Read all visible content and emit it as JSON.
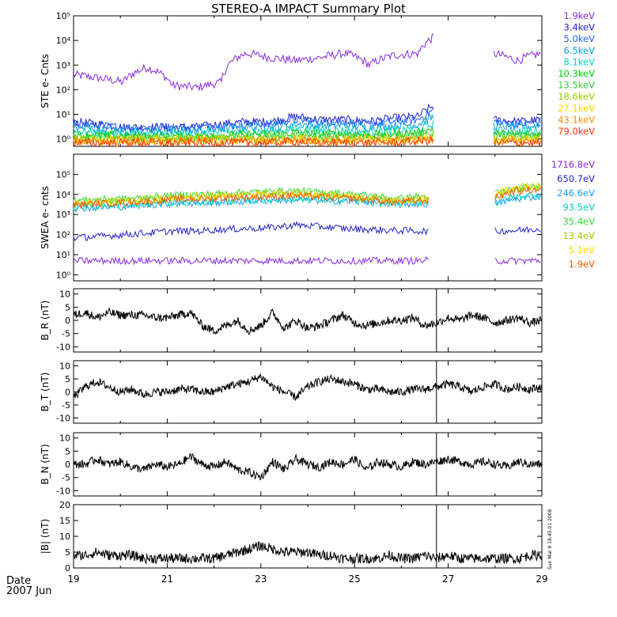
{
  "title": "STEREO-A IMPACT Summary Plot",
  "date_label": "Date",
  "date_value": "2007 Jun",
  "side_stamp": "Sun Mar  9 18:45:01 2008",
  "chart_data": [
    {
      "id": "ste",
      "type": "line",
      "ylabel": "STE e- Cnts",
      "yscale": "log",
      "ylim": [
        0.5,
        100000
      ],
      "yticks": [
        "10⁰",
        "10¹",
        "10²",
        "10³",
        "10⁴",
        "10⁵"
      ],
      "gaps": [
        [
          26.7,
          27.95
        ]
      ],
      "series": [
        {
          "name": "1.9keV",
          "color": "#8a2be2",
          "values": [
            400,
            300,
            200,
            800,
            150,
            120,
            200,
            3000,
            2000,
            1500,
            2000,
            3000,
            1000,
            2500,
            3000,
            20000,
            8000,
            3000,
            1500,
            3000
          ]
        },
        {
          "name": "3.4keV",
          "color": "#2222cc",
          "values": [
            5,
            4,
            3,
            3,
            3,
            3,
            4,
            5,
            5,
            8,
            6,
            6,
            5,
            7,
            8,
            30,
            10,
            6,
            5,
            6
          ]
        },
        {
          "name": "5.0keV",
          "color": "#1e5fff",
          "values": [
            4,
            3.5,
            3,
            3,
            3,
            3,
            3.5,
            4,
            4,
            6,
            5,
            5,
            4,
            5,
            6,
            20,
            8,
            5,
            4,
            5
          ]
        },
        {
          "name": "6.5keV",
          "color": "#00a0e0",
          "values": [
            3,
            2.5,
            2,
            2,
            2,
            2,
            2.5,
            3,
            3,
            4,
            3.5,
            3.5,
            3,
            3.5,
            4,
            10,
            5,
            3.5,
            3,
            3.5
          ]
        },
        {
          "name": "8.1keV",
          "color": "#00d0c0",
          "values": [
            2,
            1.8,
            1.6,
            1.6,
            1.6,
            1.6,
            1.8,
            2,
            2,
            2.5,
            2.2,
            2.2,
            2,
            2.2,
            2.5,
            5,
            3,
            2.2,
            2,
            2.2
          ]
        },
        {
          "name": "10.3keV",
          "color": "#00cc00",
          "values": [
            1.5,
            1.4,
            1.3,
            1.3,
            1.3,
            1.3,
            1.4,
            1.5,
            1.5,
            1.8,
            1.6,
            1.6,
            1.5,
            1.6,
            1.8,
            3,
            2,
            1.6,
            1.5,
            1.6
          ]
        },
        {
          "name": "13.5keV",
          "color": "#33cc33",
          "values": [
            1.2,
            1.1,
            1.1,
            1.1,
            1.1,
            1.1,
            1.1,
            1.2,
            1.2,
            1.4,
            1.3,
            1.3,
            1.2,
            1.3,
            1.4,
            2,
            1.5,
            1.3,
            1.2,
            1.3
          ]
        },
        {
          "name": "18.6keV",
          "color": "#99cc00",
          "values": [
            1,
            1,
            1,
            1,
            1,
            1,
            1,
            1,
            1,
            1.1,
            1,
            1,
            1,
            1,
            1.1,
            1.5,
            1.2,
            1,
            1,
            1
          ]
        },
        {
          "name": "27.1keV",
          "color": "#ffd700",
          "values": [
            0.9,
            0.9,
            0.9,
            0.9,
            0.9,
            0.9,
            0.9,
            0.9,
            0.9,
            1,
            0.9,
            0.9,
            0.9,
            0.9,
            1,
            1.2,
            1,
            0.9,
            0.9,
            0.9
          ]
        },
        {
          "name": "43.1keV",
          "color": "#ff8c00",
          "values": [
            0.8,
            0.8,
            0.8,
            0.8,
            0.8,
            0.8,
            0.8,
            0.8,
            0.8,
            0.9,
            0.8,
            0.8,
            0.8,
            0.8,
            0.9,
            1,
            0.9,
            0.8,
            0.8,
            0.8
          ]
        },
        {
          "name": "79.0keV",
          "color": "#ff3300",
          "values": [
            0.7,
            0.7,
            0.7,
            0.7,
            0.7,
            0.7,
            0.7,
            0.7,
            0.7,
            0.8,
            0.7,
            0.7,
            0.7,
            0.7,
            0.8,
            0.9,
            0.8,
            0.7,
            0.7,
            0.7
          ]
        }
      ]
    },
    {
      "id": "swea",
      "type": "line",
      "ylabel": "SWEA e- cnts",
      "yscale": "log",
      "ylim": [
        0.5,
        1000000
      ],
      "yticks": [
        "10⁰",
        "10¹",
        "10²",
        "10³",
        "10⁴",
        "10⁵"
      ],
      "gaps": [
        [
          26.6,
          28.0
        ]
      ],
      "series": [
        {
          "name": "1716.8eV",
          "color": "#8a2be2",
          "values": [
            5,
            5,
            5,
            5,
            5,
            5,
            5,
            5,
            5,
            5,
            5,
            5,
            5,
            5,
            5,
            5,
            5,
            5,
            5,
            5
          ]
        },
        {
          "name": "650.7eV",
          "color": "#2222cc",
          "values": [
            70,
            80,
            100,
            120,
            150,
            150,
            180,
            200,
            220,
            300,
            250,
            200,
            180,
            160,
            150,
            140,
            150,
            150,
            160,
            200
          ]
        },
        {
          "name": "246.6eV",
          "color": "#1e9fff",
          "values": [
            2000,
            2200,
            2500,
            3000,
            3500,
            3500,
            4000,
            4500,
            5000,
            5500,
            5000,
            4500,
            4000,
            3000,
            3500,
            3000,
            3000,
            3000,
            6000,
            8000
          ]
        },
        {
          "name": "93.5eV",
          "color": "#00d0c0",
          "values": [
            2500,
            2800,
            3000,
            3500,
            4000,
            4200,
            4500,
            5000,
            5500,
            6000,
            5500,
            5000,
            4500,
            3500,
            4000,
            3500,
            3500,
            3500,
            8000,
            10000
          ]
        },
        {
          "name": "35.4eV",
          "color": "#33dd33",
          "values": [
            5000,
            5500,
            6000,
            7000,
            9000,
            10000,
            11000,
            13000,
            14000,
            15000,
            13000,
            11000,
            9000,
            6000,
            8000,
            7000,
            9000,
            10000,
            20000,
            25000
          ]
        },
        {
          "name": "13.4eV",
          "color": "#99cc00",
          "values": [
            4000,
            4500,
            5000,
            6000,
            7000,
            8000,
            9000,
            10000,
            11000,
            12000,
            10000,
            9000,
            7000,
            5000,
            6000,
            5500,
            7000,
            8000,
            18000,
            22000
          ]
        },
        {
          "name": "5.1eV",
          "color": "#ffd700",
          "values": [
            3500,
            4000,
            4500,
            5000,
            6000,
            7000,
            8000,
            9000,
            10000,
            10000,
            9000,
            8000,
            6000,
            4500,
            5500,
            5000,
            6000,
            7000,
            25000,
            30000
          ]
        },
        {
          "name": "1.9eV",
          "color": "#ff5500",
          "values": [
            3000,
            3500,
            4000,
            4500,
            5500,
            6000,
            6500,
            7000,
            8000,
            8500,
            7500,
            6500,
            5500,
            4000,
            5000,
            4500,
            5000,
            5500,
            15000,
            18000
          ]
        }
      ]
    },
    {
      "id": "br",
      "type": "line",
      "ylabel": "B_R (nT)",
      "ylim": [
        -12,
        12
      ],
      "yticks": [
        "-10",
        "-5",
        "0",
        "5",
        "10"
      ],
      "series": [
        {
          "name": "",
          "color": "#000000",
          "values": [
            2,
            3,
            1,
            3,
            2,
            2,
            2,
            1,
            1,
            2,
            3,
            -2,
            -4,
            -2,
            0,
            -4,
            -2,
            3,
            -3,
            0,
            -3,
            -2,
            0,
            2,
            -1,
            -2,
            -1,
            0,
            0,
            1,
            -2,
            -1,
            1,
            0,
            2,
            1,
            -1,
            0,
            1,
            -1,
            0
          ]
        }
      ]
    },
    {
      "id": "bt",
      "type": "line",
      "ylabel": "B_T (nT)",
      "ylim": [
        -12,
        12
      ],
      "yticks": [
        "-10",
        "-5",
        "0",
        "5",
        "10"
      ],
      "series": [
        {
          "name": "",
          "color": "#000000",
          "values": [
            -2,
            2,
            4,
            2,
            0,
            1,
            -1,
            0,
            0,
            1,
            1,
            0,
            0,
            2,
            3,
            4,
            6,
            2,
            0,
            -2,
            2,
            4,
            5,
            4,
            3,
            1,
            1,
            0,
            0,
            1,
            1,
            2,
            3,
            2,
            0,
            2,
            3,
            1,
            2,
            1,
            2
          ]
        }
      ]
    },
    {
      "id": "bn",
      "type": "line",
      "ylabel": "B_N (nT)",
      "ylim": [
        -12,
        12
      ],
      "yticks": [
        "-10",
        "-5",
        "0",
        "5",
        "10"
      ],
      "series": [
        {
          "name": "",
          "color": "#000000",
          "values": [
            0,
            0,
            2,
            0,
            1,
            -1,
            -2,
            0,
            -1,
            0,
            3,
            0,
            -1,
            1,
            -2,
            -3,
            -5,
            1,
            -2,
            2,
            0,
            -1,
            1,
            0,
            2,
            -2,
            1,
            0,
            -1,
            1,
            0,
            1,
            2,
            1,
            0,
            1,
            0,
            -1,
            1,
            0,
            0
          ]
        }
      ]
    },
    {
      "id": "bmag",
      "type": "line",
      "ylabel": "|B| (nT)",
      "ylim": [
        0,
        20
      ],
      "yticks": [
        "0",
        "5",
        "10",
        "15",
        "20"
      ],
      "series": [
        {
          "name": "",
          "color": "#000000",
          "values": [
            4,
            4,
            5,
            4,
            4,
            4,
            3,
            3,
            3,
            3,
            3,
            3,
            3,
            4,
            5,
            6,
            7,
            6,
            5,
            5,
            5,
            4,
            4,
            3,
            3,
            3,
            3,
            4,
            3,
            3,
            4,
            3,
            4,
            3,
            3,
            3,
            3,
            3,
            3,
            4,
            4
          ]
        }
      ]
    }
  ],
  "x_axis": {
    "ticks": [
      "19",
      "21",
      "23",
      "25",
      "27",
      "29"
    ],
    "range": [
      19,
      29
    ]
  },
  "event_marker_day": 26.75
}
